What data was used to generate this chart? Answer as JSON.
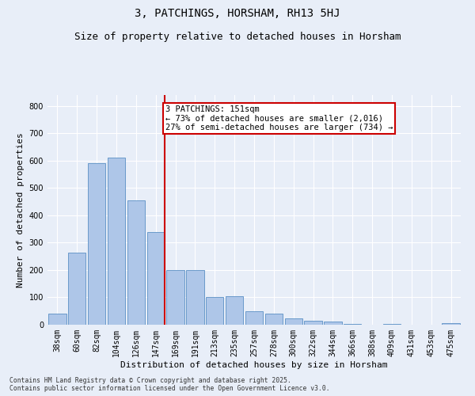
{
  "title": "3, PATCHINGS, HORSHAM, RH13 5HJ",
  "subtitle": "Size of property relative to detached houses in Horsham",
  "xlabel": "Distribution of detached houses by size in Horsham",
  "ylabel": "Number of detached properties",
  "categories": [
    "38sqm",
    "60sqm",
    "82sqm",
    "104sqm",
    "126sqm",
    "147sqm",
    "169sqm",
    "191sqm",
    "213sqm",
    "235sqm",
    "257sqm",
    "278sqm",
    "300sqm",
    "322sqm",
    "344sqm",
    "366sqm",
    "388sqm",
    "409sqm",
    "431sqm",
    "453sqm",
    "475sqm"
  ],
  "values": [
    42,
    265,
    590,
    610,
    455,
    340,
    200,
    200,
    100,
    105,
    50,
    40,
    22,
    15,
    12,
    2,
    0,
    2,
    0,
    0,
    5
  ],
  "bar_color": "#aec6e8",
  "bar_edge_color": "#5a8fc4",
  "reference_bar_index": 5,
  "reference_line_label": "3 PATCHINGS: 151sqm",
  "annotation_line1": "← 73% of detached houses are smaller (2,016)",
  "annotation_line2": "27% of semi-detached houses are larger (734) →",
  "annotation_box_color": "#cc0000",
  "ylim": [
    0,
    840
  ],
  "yticks": [
    0,
    100,
    200,
    300,
    400,
    500,
    600,
    700,
    800
  ],
  "background_color": "#e8eef8",
  "grid_color": "#ffffff",
  "footer_line1": "Contains HM Land Registry data © Crown copyright and database right 2025.",
  "footer_line2": "Contains public sector information licensed under the Open Government Licence v3.0.",
  "title_fontsize": 10,
  "subtitle_fontsize": 9,
  "axis_label_fontsize": 8,
  "tick_fontsize": 7,
  "annotation_fontsize": 7.5
}
